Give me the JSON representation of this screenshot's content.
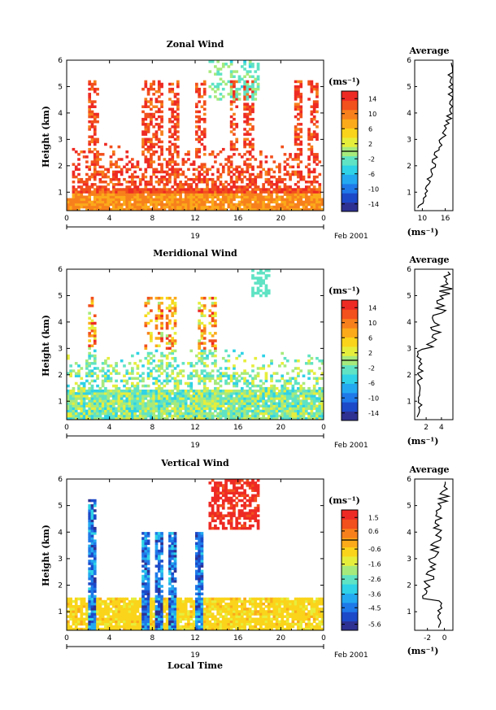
{
  "shared": {
    "hour_ticks": [
      "0",
      "4",
      "8",
      "12",
      "16",
      "20",
      "0"
    ],
    "height_ticks": [
      "1",
      "2",
      "3",
      "4",
      "5",
      "6"
    ],
    "day_label": "19",
    "month_label": "Feb 2001",
    "ylabel": "Height (km)",
    "xlabel": "Local Time",
    "unit_label": "(ms⁻¹)",
    "average_title": "Average"
  },
  "chart_data": [
    {
      "type": "heatmap",
      "title": "Zonal Wind",
      "xlabel": "",
      "ylabel": "Height (km)",
      "xlim": [
        0,
        24
      ],
      "ylim": [
        0.3,
        6
      ],
      "colorbar": {
        "label": "(ms⁻¹)",
        "ticks": [
          14,
          10,
          6,
          2,
          -2,
          -6,
          -10,
          -14
        ],
        "range": [
          -16,
          16
        ]
      },
      "colorscale": [
        "#2e3192",
        "#1c49c8",
        "#1f79e8",
        "#23a9f0",
        "#2fd2e6",
        "#5fe3c4",
        "#a7ea7c",
        "#e6ee3c",
        "#fad41a",
        "#fbaa1a",
        "#f7801c",
        "#f2501d",
        "#ee2a24"
      ],
      "color_style": "warm",
      "average": {
        "xticks": [
          "10",
          "16"
        ],
        "xlim": [
          8,
          18
        ],
        "xlabel": "(ms⁻¹)"
      }
    },
    {
      "type": "heatmap",
      "title": "Meridional Wind",
      "xlabel": "",
      "ylabel": "Height (km)",
      "xlim": [
        0,
        24
      ],
      "ylim": [
        0.3,
        6
      ],
      "colorbar": {
        "label": "(ms⁻¹)",
        "ticks": [
          14,
          10,
          6,
          2,
          -2,
          -6,
          -10,
          -14
        ],
        "range": [
          -16,
          16
        ]
      },
      "colorscale": [
        "#2e3192",
        "#1c49c8",
        "#1f79e8",
        "#23a9f0",
        "#2fd2e6",
        "#5fe3c4",
        "#a7ea7c",
        "#e6ee3c",
        "#fad41a",
        "#fbaa1a",
        "#f7801c",
        "#f2501d",
        "#ee2a24"
      ],
      "color_style": "cool",
      "average": {
        "xticks": [
          "2",
          "4"
        ],
        "xlim": [
          0.5,
          5.5
        ],
        "xlabel": "(ms⁻¹)"
      }
    },
    {
      "type": "heatmap",
      "title": "Vertical Wind",
      "xlabel": "Local Time",
      "ylabel": "Height (km)",
      "xlim": [
        0,
        24
      ],
      "ylim": [
        0.3,
        6
      ],
      "colorbar": {
        "label": "(ms⁻¹)",
        "ticks": [
          1.5,
          0.6,
          -0.6,
          -1.6,
          -2.6,
          -3.6,
          -4.5,
          -5.6
        ],
        "range": [
          -6,
          2
        ]
      },
      "colorscale": [
        "#2e3192",
        "#1c49c8",
        "#1f79e8",
        "#23a9f0",
        "#2fd2e6",
        "#5fe3c4",
        "#a7ea7c",
        "#e6ee3c",
        "#fad41a",
        "#fbaa1a",
        "#f7801c",
        "#f2501d",
        "#ee2a24"
      ],
      "color_style": "vertical",
      "average": {
        "xticks": [
          "-2",
          "0"
        ],
        "xlim": [
          -3.5,
          1
        ],
        "xlabel": "(ms⁻¹)"
      }
    }
  ]
}
